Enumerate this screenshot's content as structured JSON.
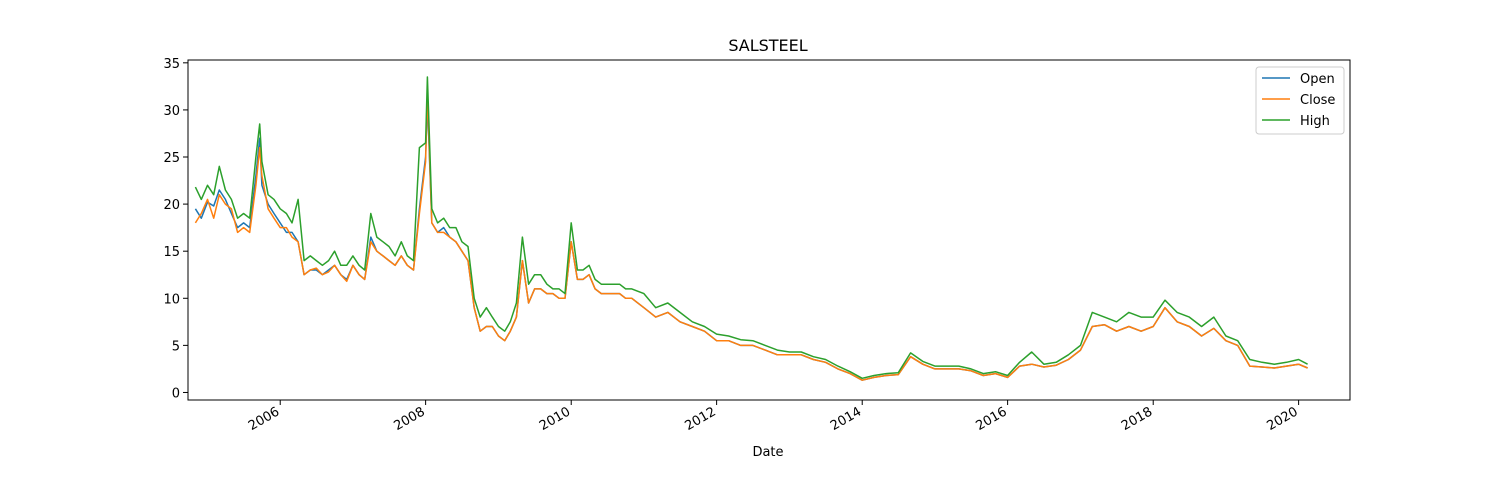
{
  "chart_data": {
    "type": "line",
    "title": "SALSTEEL",
    "xlabel": "Date",
    "ylabel": "",
    "xlim": [
      "2004-09-25",
      "2020-09-15"
    ],
    "ylim": [
      -0.8,
      35.3
    ],
    "x_ticks": [
      "2006",
      "2008",
      "2010",
      "2012",
      "2014",
      "2016",
      "2018",
      "2020"
    ],
    "y_ticks": [
      0,
      5,
      10,
      15,
      20,
      25,
      30,
      35
    ],
    "legend_position": "top-right",
    "grid": false,
    "x": [
      "2004-11-01",
      "2004-12-01",
      "2005-01-01",
      "2005-02-01",
      "2005-03-01",
      "2005-04-01",
      "2005-05-01",
      "2005-06-01",
      "2005-07-01",
      "2005-08-01",
      "2005-09-01",
      "2005-09-20",
      "2005-10-01",
      "2005-11-01",
      "2005-12-01",
      "2006-01-01",
      "2006-02-01",
      "2006-03-01",
      "2006-04-01",
      "2006-05-01",
      "2006-06-01",
      "2006-07-01",
      "2006-08-01",
      "2006-09-01",
      "2006-10-01",
      "2006-11-01",
      "2006-12-01",
      "2007-01-01",
      "2007-02-01",
      "2007-03-01",
      "2007-04-01",
      "2007-05-01",
      "2007-06-01",
      "2007-07-01",
      "2007-08-01",
      "2007-09-01",
      "2007-10-01",
      "2007-11-01",
      "2007-12-01",
      "2008-01-01",
      "2008-01-10",
      "2008-02-01",
      "2008-03-01",
      "2008-04-01",
      "2008-05-01",
      "2008-06-01",
      "2008-07-01",
      "2008-08-01",
      "2008-09-01",
      "2008-10-01",
      "2008-11-01",
      "2008-12-01",
      "2009-01-01",
      "2009-02-01",
      "2009-03-01",
      "2009-04-01",
      "2009-05-01",
      "2009-06-01",
      "2009-07-01",
      "2009-08-01",
      "2009-09-01",
      "2009-10-01",
      "2009-11-01",
      "2009-12-01",
      "2010-01-01",
      "2010-02-01",
      "2010-03-01",
      "2010-04-01",
      "2010-05-01",
      "2010-06-01",
      "2010-07-01",
      "2010-08-01",
      "2010-09-01",
      "2010-10-01",
      "2010-11-01",
      "2011-01-01",
      "2011-03-01",
      "2011-05-01",
      "2011-07-01",
      "2011-09-01",
      "2011-11-01",
      "2012-01-01",
      "2012-03-01",
      "2012-05-01",
      "2012-07-01",
      "2012-09-01",
      "2012-11-01",
      "2013-01-01",
      "2013-03-01",
      "2013-05-01",
      "2013-07-01",
      "2013-09-01",
      "2013-11-01",
      "2014-01-01",
      "2014-03-01",
      "2014-05-01",
      "2014-07-01",
      "2014-09-01",
      "2014-11-01",
      "2015-01-01",
      "2015-03-01",
      "2015-05-01",
      "2015-07-01",
      "2015-09-01",
      "2015-11-01",
      "2016-01-01",
      "2016-03-01",
      "2016-05-01",
      "2016-07-01",
      "2016-09-01",
      "2016-11-01",
      "2017-01-01",
      "2017-03-01",
      "2017-05-01",
      "2017-07-01",
      "2017-09-01",
      "2017-11-01",
      "2018-01-01",
      "2018-03-01",
      "2018-05-01",
      "2018-07-01",
      "2018-09-01",
      "2018-11-01",
      "2019-01-01",
      "2019-03-01",
      "2019-05-01",
      "2019-07-01",
      "2019-09-01",
      "2019-11-01",
      "2020-01-01",
      "2020-02-15"
    ],
    "series": [
      {
        "name": "Open",
        "color": "#1f77b4",
        "values": [
          19.5,
          18.5,
          20.2,
          19.8,
          21.5,
          20.5,
          19.0,
          17.5,
          18.0,
          17.5,
          23.0,
          27.0,
          22.0,
          20.0,
          19.0,
          18.0,
          17.0,
          17.0,
          16.0,
          12.5,
          13.0,
          13.0,
          12.5,
          13.0,
          13.5,
          12.5,
          12.0,
          13.5,
          12.5,
          12.0,
          16.5,
          15.0,
          14.5,
          14.0,
          13.5,
          14.5,
          13.5,
          13.0,
          19.5,
          25.0,
          31.0,
          18.0,
          17.0,
          17.5,
          16.5,
          16.0,
          15.0,
          14.0,
          9.0,
          6.5,
          7.0,
          7.0,
          6.0,
          5.5,
          6.5,
          8.0,
          14.0,
          9.5,
          11.0,
          11.0,
          10.5,
          10.5,
          10.0,
          10.0,
          16.0,
          12.0,
          12.0,
          12.5,
          11.0,
          10.5,
          10.5,
          10.5,
          10.5,
          10.0,
          10.0,
          9.0,
          8.0,
          8.5,
          7.5,
          7.0,
          6.5,
          5.5,
          5.5,
          5.0,
          5.0,
          4.5,
          4.0,
          4.0,
          4.0,
          3.5,
          3.2,
          2.5,
          2.0,
          1.3,
          1.6,
          1.8,
          1.9,
          3.8,
          3.0,
          2.5,
          2.5,
          2.5,
          2.3,
          1.8,
          2.0,
          1.6,
          2.8,
          3.0,
          2.7,
          2.9,
          3.5,
          4.5,
          7.0,
          7.2,
          6.5,
          7.0,
          6.5,
          7.0,
          9.0,
          7.5,
          7.0,
          6.0,
          6.8,
          5.5,
          5.0,
          2.8,
          2.7,
          2.6,
          2.8,
          3.0,
          2.6
        ]
      },
      {
        "name": "Close",
        "color": "#ff7f0e",
        "values": [
          18.0,
          19.0,
          20.5,
          18.5,
          21.0,
          20.0,
          19.5,
          17.0,
          17.5,
          17.0,
          22.0,
          26.0,
          23.0,
          19.5,
          18.5,
          17.5,
          17.5,
          16.5,
          16.0,
          12.5,
          13.0,
          13.2,
          12.5,
          12.8,
          13.5,
          12.5,
          11.8,
          13.5,
          12.5,
          12.0,
          16.0,
          15.0,
          14.5,
          14.0,
          13.5,
          14.5,
          13.5,
          13.0,
          19.0,
          24.5,
          32.0,
          18.0,
          17.0,
          17.0,
          16.5,
          16.0,
          15.0,
          14.0,
          9.0,
          6.5,
          7.0,
          7.0,
          6.0,
          5.5,
          6.5,
          8.0,
          14.0,
          9.5,
          11.0,
          11.0,
          10.5,
          10.5,
          10.0,
          10.0,
          16.0,
          12.0,
          12.0,
          12.5,
          11.0,
          10.5,
          10.5,
          10.5,
          10.5,
          10.0,
          10.0,
          9.0,
          8.0,
          8.5,
          7.5,
          7.0,
          6.5,
          5.5,
          5.5,
          5.0,
          5.0,
          4.5,
          4.0,
          4.0,
          4.0,
          3.5,
          3.2,
          2.5,
          2.0,
          1.3,
          1.6,
          1.8,
          1.9,
          3.8,
          3.0,
          2.5,
          2.5,
          2.5,
          2.3,
          1.8,
          2.0,
          1.6,
          2.8,
          3.0,
          2.7,
          2.9,
          3.5,
          4.5,
          7.0,
          7.2,
          6.5,
          7.0,
          6.5,
          7.0,
          9.0,
          7.5,
          7.0,
          6.0,
          6.8,
          5.5,
          5.0,
          2.8,
          2.7,
          2.6,
          2.8,
          3.0,
          2.6
        ]
      },
      {
        "name": "High",
        "color": "#2ca02c",
        "values": [
          21.8,
          20.5,
          22.0,
          21.0,
          24.0,
          21.5,
          20.5,
          18.5,
          19.0,
          18.5,
          25.0,
          28.5,
          24.5,
          21.0,
          20.5,
          19.5,
          19.0,
          18.0,
          20.5,
          14.0,
          14.5,
          14.0,
          13.5,
          14.0,
          15.0,
          13.5,
          13.5,
          14.5,
          13.5,
          13.0,
          19.0,
          16.5,
          16.0,
          15.5,
          14.5,
          16.0,
          14.5,
          14.0,
          26.0,
          26.5,
          33.5,
          19.5,
          18.0,
          18.5,
          17.5,
          17.5,
          16.0,
          15.5,
          10.0,
          8.0,
          9.0,
          8.0,
          7.0,
          6.5,
          7.5,
          9.5,
          16.5,
          11.5,
          12.5,
          12.5,
          11.5,
          11.0,
          11.0,
          10.5,
          18.0,
          13.0,
          13.0,
          13.5,
          12.0,
          11.5,
          11.5,
          11.5,
          11.5,
          11.0,
          11.0,
          10.5,
          9.0,
          9.5,
          8.5,
          7.5,
          7.0,
          6.2,
          6.0,
          5.6,
          5.5,
          5.0,
          4.5,
          4.3,
          4.3,
          3.8,
          3.5,
          2.8,
          2.2,
          1.5,
          1.8,
          2.0,
          2.1,
          4.2,
          3.3,
          2.8,
          2.8,
          2.8,
          2.5,
          2.0,
          2.2,
          1.8,
          3.2,
          4.3,
          3.0,
          3.2,
          4.0,
          5.0,
          8.5,
          8.0,
          7.5,
          8.5,
          8.0,
          8.0,
          9.8,
          8.5,
          8.0,
          7.0,
          8.0,
          6.0,
          5.5,
          3.5,
          3.2,
          3.0,
          3.2,
          3.5,
          3.0
        ]
      }
    ]
  }
}
